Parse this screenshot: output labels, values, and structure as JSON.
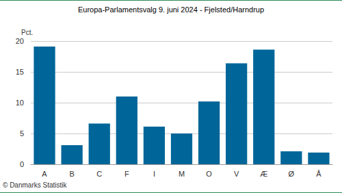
{
  "chart_data": {
    "type": "bar",
    "title": "Europa-Parlamentsvalg 9. juni 2024 - Fjelsted/Harndrup",
    "y_label": "Pct.",
    "source": "© Danmarks Statistik",
    "categories": [
      "A",
      "B",
      "C",
      "F",
      "I",
      "M",
      "O",
      "V",
      "Æ",
      "Ø",
      "Å"
    ],
    "values": [
      19.1,
      3.1,
      6.6,
      11.0,
      6.1,
      5.0,
      10.2,
      16.4,
      18.6,
      2.1,
      1.9
    ],
    "color": "#006699",
    "ylim": [
      0,
      20
    ],
    "yticks": [
      0,
      5,
      10,
      15,
      20
    ],
    "grid": true
  }
}
